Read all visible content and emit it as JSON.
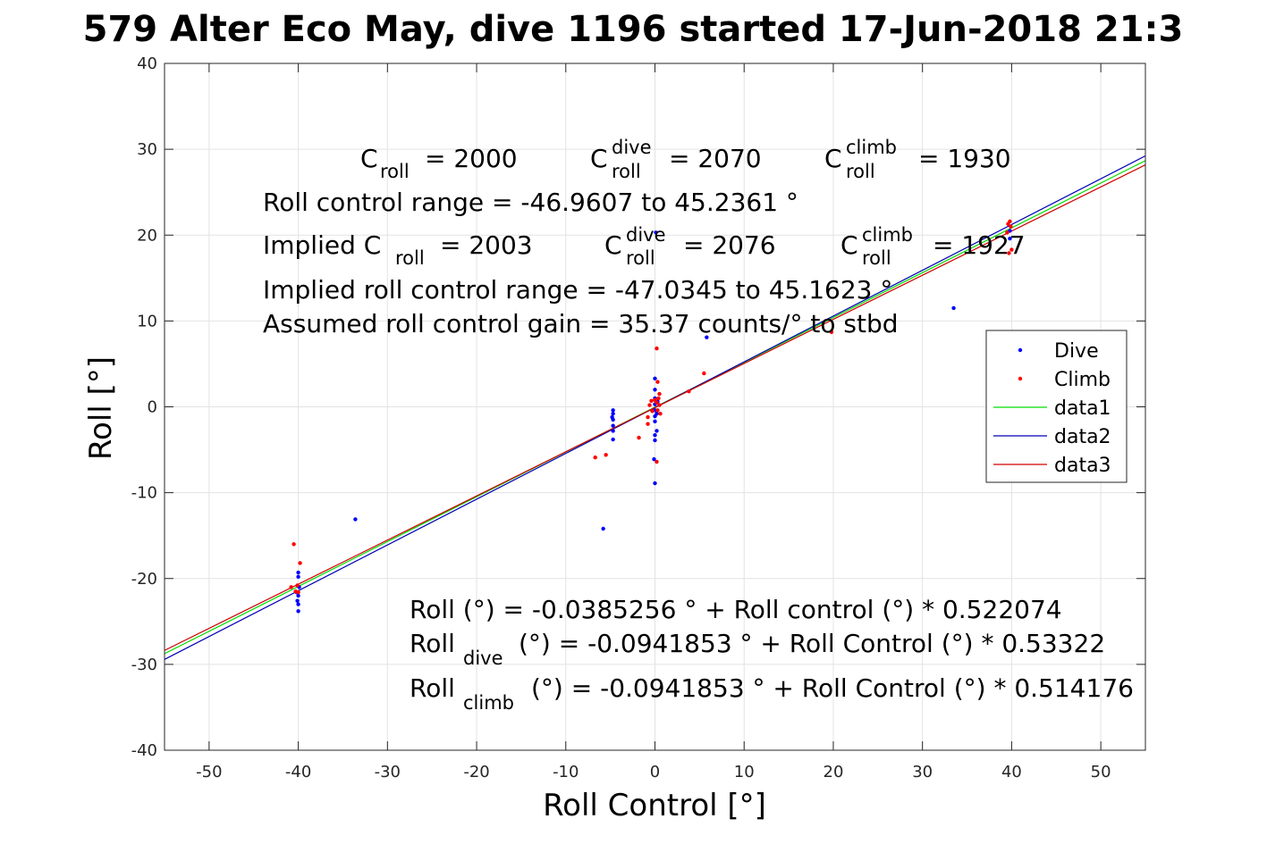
{
  "chart_data": {
    "type": "scatter",
    "title": "579 Alter Eco May, dive 1196 started 17-Jun-2018 21:3",
    "xlabel": "Roll Control [°]",
    "ylabel": "Roll [°]",
    "xlim": [
      -55,
      55
    ],
    "ylim": [
      -40,
      40
    ],
    "xticks": [
      -50,
      -40,
      -30,
      -20,
      -10,
      0,
      10,
      20,
      30,
      40,
      50
    ],
    "yticks": [
      -40,
      -30,
      -20,
      -10,
      0,
      10,
      20,
      30,
      40
    ],
    "grid": true,
    "legend_position": "east",
    "series": [
      {
        "name": "Dive",
        "kind": "points",
        "color": "#0000ff",
        "points": [
          [
            -40,
            -22
          ],
          [
            -40,
            -23
          ],
          [
            -40,
            -23.8
          ],
          [
            -40,
            -19.3
          ],
          [
            -40,
            -19.8
          ],
          [
            -40.2,
            -21.6
          ],
          [
            -40.1,
            -22.6
          ],
          [
            -39.9,
            -21
          ],
          [
            -33.6,
            -13.1
          ],
          [
            -5.8,
            -14.2
          ],
          [
            -4.7,
            -0.4
          ],
          [
            -4.7,
            -0.8
          ],
          [
            -4.7,
            -1.5
          ],
          [
            -4.7,
            -2.2
          ],
          [
            -4.7,
            -2.8
          ],
          [
            -4.7,
            -3.8
          ],
          [
            -4.8,
            -1.2
          ],
          [
            0,
            3.3
          ],
          [
            0,
            2
          ],
          [
            0,
            1
          ],
          [
            0,
            0.3
          ],
          [
            0,
            -0.4
          ],
          [
            0,
            -1.1
          ],
          [
            0,
            -1.7
          ],
          [
            0,
            -3.3
          ],
          [
            0,
            -3.9
          ],
          [
            0.2,
            -2.8
          ],
          [
            -0.1,
            -6.1
          ],
          [
            0,
            -8.9
          ],
          [
            0.1,
            20.3
          ],
          [
            0.3,
            0.6
          ],
          [
            0.2,
            -0.8
          ],
          [
            5.8,
            8.1
          ],
          [
            33.5,
            11.5
          ],
          [
            39.8,
            19.6
          ],
          [
            39.8,
            20.5
          ]
        ]
      },
      {
        "name": "Climb",
        "kind": "points",
        "color": "#ff0000",
        "points": [
          [
            -40.5,
            -16
          ],
          [
            -39.8,
            -18.2
          ],
          [
            -40.8,
            -21
          ],
          [
            -40.1,
            -20.8
          ],
          [
            -40,
            -21.6
          ],
          [
            -40.3,
            -21.5
          ],
          [
            -6.7,
            -5.9
          ],
          [
            -5.5,
            -5.6
          ],
          [
            -1.8,
            -3.6
          ],
          [
            -0.8,
            -1.2
          ],
          [
            -0.8,
            -2
          ],
          [
            -0.6,
            0.2
          ],
          [
            -0.4,
            0.7
          ],
          [
            -0.3,
            -0.5
          ],
          [
            0,
            0.8
          ],
          [
            0.2,
            0.5
          ],
          [
            0.3,
            -0.4
          ],
          [
            0.5,
            1.5
          ],
          [
            0.6,
            -0.8
          ],
          [
            0.4,
            1
          ],
          [
            0.2,
            -6.4
          ],
          [
            0.3,
            2.9
          ],
          [
            0.2,
            6.8
          ],
          [
            0.5,
            0.2
          ],
          [
            3.8,
            1.8
          ],
          [
            5.5,
            3.9
          ],
          [
            19.8,
            8.7
          ],
          [
            39.6,
            21.3
          ],
          [
            39.8,
            21.6
          ],
          [
            39.9,
            21
          ],
          [
            39.5,
            20.3
          ],
          [
            39.7,
            17.9
          ],
          [
            40,
            18.3
          ]
        ]
      },
      {
        "name": "data1",
        "kind": "line",
        "color": "#00dd00",
        "intercept": -0.0385256,
        "slope": 0.522074
      },
      {
        "name": "data2",
        "kind": "line",
        "color": "#0000b4",
        "intercept": -0.0941853,
        "slope": 0.53322
      },
      {
        "name": "data3",
        "kind": "line",
        "color": "#d00000",
        "intercept": -0.0941853,
        "slope": 0.514176
      }
    ],
    "annotations": {
      "top_line1": {
        "c_roll": "= 2000",
        "c_dive": "= 2070",
        "c_climb": "= 1930"
      },
      "top_line2": "Roll control range = -46.9607 to 45.2361 °",
      "top_line3": {
        "prefix": "Implied C",
        "c_roll": "= 2003",
        "c_dive": "= 2076",
        "c_climb": "= 1927"
      },
      "top_line4": "Implied roll control range = -47.0345 to 45.1623 °",
      "top_line5": "Assumed roll control gain = 35.37 counts/° to stbd",
      "eq1": "Roll (°) = -0.0385256 ° + Roll control (°) * 0.522074",
      "eq2": "(°) = -0.0941853 ° + Roll Control (°) * 0.53322",
      "eq3": "(°) = -0.0941853 ° + Roll Control (°) * 0.514176",
      "sym": {
        "C": "C",
        "roll": "roll",
        "dive": "dive",
        "climb": "climb",
        "Roll": "Roll"
      }
    }
  }
}
